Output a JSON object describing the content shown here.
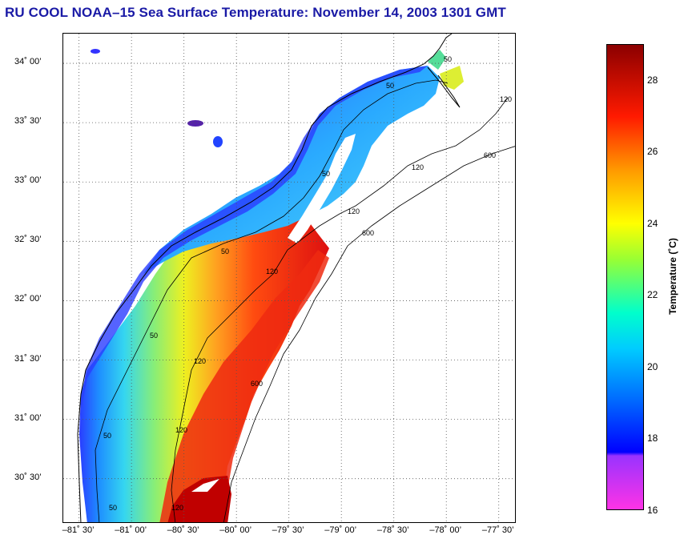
{
  "title": "RU COOL  NOAA–15  Sea Surface Temperature:  November 14, 2003 1301 GMT",
  "map": {
    "lat_ticks": [
      {
        "value": 34.0,
        "label": "34˚ 00’"
      },
      {
        "value": 33.5,
        "label": "33˚ 30’"
      },
      {
        "value": 33.0,
        "label": "33˚ 00’"
      },
      {
        "value": 32.5,
        "label": "32˚ 30’"
      },
      {
        "value": 32.0,
        "label": "32˚ 00’"
      },
      {
        "value": 31.5,
        "label": "31˚ 30’"
      },
      {
        "value": 31.0,
        "label": "31˚ 00’"
      },
      {
        "value": 30.5,
        "label": "30˚ 30’"
      }
    ],
    "lon_ticks": [
      {
        "value": -81.5,
        "label": "–81˚ 30’"
      },
      {
        "value": -81.0,
        "label": "–81˚ 00’"
      },
      {
        "value": -80.5,
        "label": "–80˚ 30’"
      },
      {
        "value": -80.0,
        "label": "–80˚ 00’"
      },
      {
        "value": -79.5,
        "label": "–79˚ 30’"
      },
      {
        "value": -79.0,
        "label": "–79˚ 00’"
      },
      {
        "value": -78.5,
        "label": "–78˚ 30’"
      },
      {
        "value": -78.0,
        "label": "–78˚ 00’"
      },
      {
        "value": -77.5,
        "label": "–77˚ 30’"
      }
    ],
    "lon_range": [
      -81.65,
      -77.33
    ],
    "lat_range": [
      30.12,
      34.25
    ],
    "isobath_labels": [
      "50",
      "120",
      "600"
    ],
    "colors": {
      "land": "#ffffff",
      "coast": "#000000",
      "grid": "#555555"
    }
  },
  "colorbar": {
    "title": "Temperature (˚C)",
    "range": [
      16,
      29
    ],
    "ticks": [
      {
        "value": 28,
        "label": "28"
      },
      {
        "value": 26,
        "label": "26"
      },
      {
        "value": 24,
        "label": "24"
      },
      {
        "value": 22,
        "label": "22"
      },
      {
        "value": 20,
        "label": "20"
      },
      {
        "value": 18,
        "label": "18"
      },
      {
        "value": 16,
        "label": "16"
      }
    ],
    "stops": [
      {
        "value": 16,
        "color": "#ff33e6"
      },
      {
        "value": 17.5,
        "color": "#9933ff"
      },
      {
        "value": 17.6,
        "color": "#0000ff"
      },
      {
        "value": 19,
        "color": "#0066ff"
      },
      {
        "value": 20.5,
        "color": "#00ccff"
      },
      {
        "value": 21.5,
        "color": "#00ffcc"
      },
      {
        "value": 23,
        "color": "#99ff33"
      },
      {
        "value": 24,
        "color": "#ffff00"
      },
      {
        "value": 25.5,
        "color": "#ff9900"
      },
      {
        "value": 27,
        "color": "#ff1a00"
      },
      {
        "value": 29,
        "color": "#8b0000"
      }
    ]
  }
}
